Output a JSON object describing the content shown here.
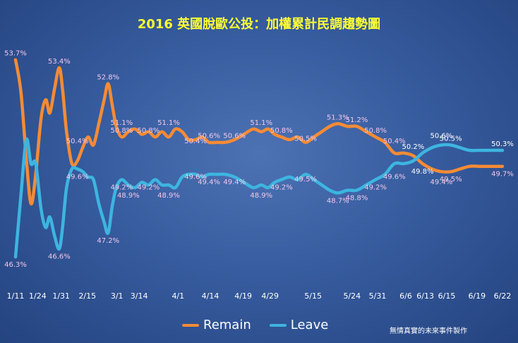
{
  "chart_data": {
    "type": "line",
    "title": "2016 英國脫歐公投：加權累計民調趨勢圖",
    "xlabel": "",
    "ylabel": "",
    "ylim": [
      45.4,
      54.3
    ],
    "grid": false,
    "legend_position": "bottom",
    "x_ticks": [
      "1/11",
      "1/24",
      "1/31",
      "2/15",
      "3/1",
      "3/14",
      "4/1",
      "4/14",
      "4/19",
      "4/29",
      "5/15",
      "5/24",
      "5/31",
      "6/6",
      "6/13",
      "6/15",
      "6/19",
      "6/22"
    ],
    "series": [
      {
        "name": "Remain",
        "color": "#f58b34",
        "values": [
          [
            0,
            53.7
          ],
          [
            0.8,
            52.5
          ],
          [
            1.6,
            50.0
          ],
          [
            2.3,
            48.3
          ],
          [
            3.0,
            49.4
          ],
          [
            3.8,
            51.5
          ],
          [
            4.5,
            52.2
          ],
          [
            5.1,
            51.7
          ],
          [
            5.8,
            52.6
          ],
          [
            6.5,
            53.4
          ],
          [
            7.0,
            52.6
          ],
          [
            7.6,
            51.0
          ],
          [
            8.4,
            49.8
          ],
          [
            9.2,
            49.9
          ],
          [
            10.0,
            50.4
          ],
          [
            10.8,
            50.8
          ],
          [
            11.6,
            50.5
          ],
          [
            12.4,
            51.3
          ],
          [
            13.2,
            52.2
          ],
          [
            13.8,
            52.8
          ],
          [
            14.4,
            52.0
          ],
          [
            15.0,
            51.2
          ],
          [
            15.8,
            50.8
          ],
          [
            16.8,
            51.0
          ],
          [
            17.8,
            51.1
          ],
          [
            18.8,
            50.9
          ],
          [
            19.8,
            51.0
          ],
          [
            20.8,
            50.8
          ],
          [
            21.8,
            51.0
          ],
          [
            22.8,
            50.8
          ],
          [
            23.8,
            51.1
          ],
          [
            24.8,
            51.0
          ],
          [
            25.8,
            50.7
          ],
          [
            26.8,
            50.7
          ],
          [
            27.8,
            50.8
          ],
          [
            28.8,
            50.6
          ],
          [
            30.0,
            50.6
          ],
          [
            31.2,
            50.6
          ],
          [
            32.6,
            50.7
          ],
          [
            34.0,
            50.9
          ],
          [
            35.4,
            51.1
          ],
          [
            36.6,
            51.0
          ],
          [
            37.6,
            51.1
          ],
          [
            38.6,
            50.9
          ],
          [
            39.6,
            50.8
          ],
          [
            40.8,
            50.7
          ],
          [
            42.0,
            50.8
          ],
          [
            43.2,
            50.6
          ],
          [
            44.4,
            50.8
          ],
          [
            45.6,
            51.0
          ],
          [
            46.8,
            51.2
          ],
          [
            48.0,
            51.3
          ],
          [
            49.4,
            51.2
          ],
          [
            50.8,
            51.2
          ],
          [
            52.2,
            51.0
          ],
          [
            53.6,
            50.8
          ],
          [
            55.0,
            50.6
          ],
          [
            56.4,
            50.2
          ],
          [
            57.8,
            50.2
          ],
          [
            59.2,
            50.1
          ],
          [
            60.6,
            49.8
          ],
          [
            62.0,
            49.6
          ],
          [
            63.4,
            49.5
          ],
          [
            64.8,
            49.5
          ],
          [
            66.2,
            49.6
          ],
          [
            67.6,
            49.7
          ],
          [
            69.0,
            49.7
          ],
          [
            70.4,
            49.7
          ],
          [
            71.8,
            49.7
          ],
          [
            72.5,
            49.7
          ]
        ]
      },
      {
        "name": "Leave",
        "color": "#3db5e0",
        "values": [
          [
            0,
            46.3
          ],
          [
            0.8,
            48.6
          ],
          [
            1.6,
            50.7
          ],
          [
            2.3,
            49.8
          ],
          [
            3.0,
            49.8
          ],
          [
            3.8,
            48.1
          ],
          [
            4.5,
            47.4
          ],
          [
            5.1,
            47.8
          ],
          [
            5.8,
            47.1
          ],
          [
            6.5,
            46.6
          ],
          [
            7.0,
            47.4
          ],
          [
            7.6,
            48.9
          ],
          [
            8.4,
            49.6
          ],
          [
            9.2,
            49.6
          ],
          [
            10.0,
            49.5
          ],
          [
            10.8,
            49.3
          ],
          [
            11.6,
            49.2
          ],
          [
            12.4,
            48.3
          ],
          [
            13.2,
            47.6
          ],
          [
            13.8,
            47.2
          ],
          [
            14.4,
            48.2
          ],
          [
            15.0,
            48.9
          ],
          [
            15.8,
            49.2
          ],
          [
            16.8,
            49.0
          ],
          [
            17.8,
            48.9
          ],
          [
            18.8,
            49.1
          ],
          [
            19.8,
            49.0
          ],
          [
            20.8,
            49.2
          ],
          [
            21.8,
            49.0
          ],
          [
            22.8,
            49.0
          ],
          [
            23.8,
            48.9
          ],
          [
            24.8,
            49.3
          ],
          [
            25.8,
            49.4
          ],
          [
            26.8,
            49.4
          ],
          [
            27.8,
            49.3
          ],
          [
            28.8,
            49.4
          ],
          [
            30.0,
            49.4
          ],
          [
            31.2,
            49.4
          ],
          [
            32.6,
            49.3
          ],
          [
            34.0,
            49.1
          ],
          [
            35.4,
            48.9
          ],
          [
            36.6,
            49.0
          ],
          [
            37.6,
            48.9
          ],
          [
            38.6,
            49.1
          ],
          [
            39.6,
            49.2
          ],
          [
            40.8,
            49.3
          ],
          [
            42.0,
            49.2
          ],
          [
            43.2,
            49.4
          ],
          [
            44.4,
            49.2
          ],
          [
            45.6,
            49.0
          ],
          [
            46.8,
            48.8
          ],
          [
            48.0,
            48.7
          ],
          [
            49.4,
            48.8
          ],
          [
            50.8,
            48.8
          ],
          [
            52.2,
            49.0
          ],
          [
            53.6,
            49.2
          ],
          [
            55.0,
            49.4
          ],
          [
            56.4,
            49.8
          ],
          [
            57.8,
            49.8
          ],
          [
            59.2,
            49.9
          ],
          [
            60.6,
            50.2
          ],
          [
            62.0,
            50.4
          ],
          [
            63.4,
            50.5
          ],
          [
            64.8,
            50.5
          ],
          [
            66.2,
            50.4
          ],
          [
            67.6,
            50.3
          ],
          [
            69.0,
            50.3
          ],
          [
            70.4,
            50.3
          ],
          [
            71.8,
            50.3
          ],
          [
            72.5,
            50.3
          ]
        ]
      }
    ],
    "annotations": [
      {
        "x": 0,
        "y": 53.7,
        "text": "53.7%",
        "color": "#f0c8e8"
      },
      {
        "x": 0,
        "y": 46.3,
        "text": "46.3%",
        "color": "#f0c8e8"
      },
      {
        "x": 6.5,
        "y": 53.4,
        "text": "53.4%",
        "color": "#f0c8e8"
      },
      {
        "x": 6.5,
        "y": 46.6,
        "text": "46.6%",
        "color": "#f0c8e8"
      },
      {
        "x": 9.2,
        "y": 49.6,
        "text": "49.6%",
        "color": "#f0c8e8"
      },
      {
        "x": 9.2,
        "y": 50.4,
        "text": "50.4%",
        "color": "#f0c8e8"
      },
      {
        "x": 13.8,
        "y": 52.8,
        "text": "52.8%",
        "color": "#f0c8e8"
      },
      {
        "x": 13.8,
        "y": 47.2,
        "text": "47.2%",
        "color": "#f0c8e8"
      },
      {
        "x": 15.8,
        "y": 51.1,
        "text": "51.1%",
        "color": "#f0c8e8"
      },
      {
        "x": 15.8,
        "y": 50.8,
        "text": "50.8%",
        "color": "#f0c8e8"
      },
      {
        "x": 15.8,
        "y": 49.2,
        "text": "49.2%",
        "color": "#f0c8e8"
      },
      {
        "x": 16.8,
        "y": 48.9,
        "text": "48.9%",
        "color": "#f0c8e8"
      },
      {
        "x": 19.8,
        "y": 50.8,
        "text": "50.8%",
        "color": "#f0c8e8"
      },
      {
        "x": 19.8,
        "y": 49.2,
        "text": "49.2%",
        "color": "#f0c8e8"
      },
      {
        "x": 22.8,
        "y": 51.1,
        "text": "51.1%",
        "color": "#f0c8e8"
      },
      {
        "x": 22.8,
        "y": 48.9,
        "text": "48.9%",
        "color": "#f0c8e8"
      },
      {
        "x": 26.8,
        "y": 50.4,
        "text": "50.4%",
        "color": "#f0c8e8"
      },
      {
        "x": 26.8,
        "y": 49.6,
        "text": "49.6%",
        "color": "#f0c8e8"
      },
      {
        "x": 28.8,
        "y": 50.6,
        "text": "50.6%",
        "color": "#f0c8e8"
      },
      {
        "x": 28.8,
        "y": 49.4,
        "text": "49.4%",
        "color": "#f0c8e8"
      },
      {
        "x": 32.6,
        "y": 50.6,
        "text": "50.6%",
        "color": "#f0c8e8"
      },
      {
        "x": 32.6,
        "y": 49.4,
        "text": "49.4%",
        "color": "#f0c8e8"
      },
      {
        "x": 36.6,
        "y": 51.1,
        "text": "51.1%",
        "color": "#f0c8e8"
      },
      {
        "x": 36.6,
        "y": 48.9,
        "text": "48.9%",
        "color": "#f0c8e8"
      },
      {
        "x": 39.6,
        "y": 50.8,
        "text": "50.8%",
        "color": "#f0c8e8"
      },
      {
        "x": 39.6,
        "y": 49.2,
        "text": "49.2%",
        "color": "#f0c8e8"
      },
      {
        "x": 43.2,
        "y": 50.5,
        "text": "50.5%",
        "color": "#f0c8e8"
      },
      {
        "x": 43.2,
        "y": 49.5,
        "text": "49.5%",
        "color": "#f0c8e8"
      },
      {
        "x": 48.0,
        "y": 51.3,
        "text": "51.3%",
        "color": "#f0c8e8"
      },
      {
        "x": 48.0,
        "y": 48.7,
        "text": "48.7%",
        "color": "#f0c8e8"
      },
      {
        "x": 50.8,
        "y": 51.2,
        "text": "51.2%",
        "color": "#f0c8e8"
      },
      {
        "x": 50.8,
        "y": 48.8,
        "text": "48.8%",
        "color": "#f0c8e8"
      },
      {
        "x": 53.6,
        "y": 50.8,
        "text": "50.8%",
        "color": "#f0c8e8"
      },
      {
        "x": 53.6,
        "y": 49.2,
        "text": "49.2%",
        "color": "#f0c8e8"
      },
      {
        "x": 56.4,
        "y": 50.4,
        "text": "50.4%",
        "color": "#f0c8e8"
      },
      {
        "x": 56.4,
        "y": 49.6,
        "text": "49.6%",
        "color": "#f0c8e8"
      },
      {
        "x": 59.2,
        "y": 50.2,
        "text": "50.2%",
        "color": "#ffffff"
      },
      {
        "x": 60.6,
        "y": 49.8,
        "text": "49.8%",
        "color": "#ffffff"
      },
      {
        "x": 63.4,
        "y": 50.6,
        "text": "50.6%",
        "color": "#ffffff"
      },
      {
        "x": 63.4,
        "y": 49.4,
        "text": "49.4%",
        "color": "#f0c8e8"
      },
      {
        "x": 64.8,
        "y": 50.5,
        "text": "50.5%",
        "color": "#ffffff"
      },
      {
        "x": 64.8,
        "y": 49.5,
        "text": "49.5%",
        "color": "#f0c8e8"
      },
      {
        "x": 72.5,
        "y": 50.3,
        "text": "50.3%",
        "color": "#ffffff"
      },
      {
        "x": 72.5,
        "y": 49.7,
        "text": "49.7%",
        "color": "#f0c8e8"
      }
    ]
  },
  "legend": {
    "remain_label": "Remain",
    "leave_label": "Leave"
  },
  "credit": "無情真實的未來事件製作"
}
